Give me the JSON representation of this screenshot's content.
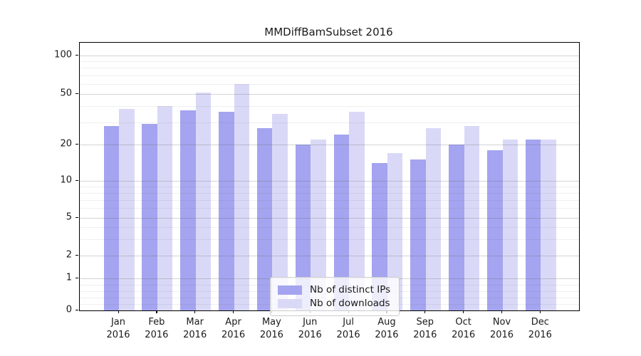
{
  "title": "MMDiffBamSubset 2016",
  "chart_data": {
    "type": "bar",
    "title": "MMDiffBamSubset 2016",
    "categories": [
      "Jan 2016",
      "Feb 2016",
      "Mar 2016",
      "Apr 2016",
      "May 2016",
      "Jun 2016",
      "Jul 2016",
      "Aug 2016",
      "Sep 2016",
      "Oct 2016",
      "Nov 2016",
      "Dec 2016"
    ],
    "series": [
      {
        "name": "Nb of distinct IPs",
        "color": "#a4a4f0",
        "values": [
          28,
          29,
          37,
          36,
          27,
          20,
          24,
          14,
          15,
          20,
          18,
          22
        ]
      },
      {
        "name": "Nb of downloads",
        "color": "#d9d9f7",
        "values": [
          38,
          40,
          51,
          60,
          35,
          22,
          36,
          17,
          27,
          28,
          22,
          22
        ]
      }
    ],
    "xlabel": "",
    "ylabel": "",
    "yscale": "symlog",
    "ylim": [
      0,
      100
    ],
    "yticks": [
      0,
      1,
      2,
      5,
      10,
      20,
      50,
      100
    ],
    "minor_yticks": [
      0.2,
      0.4,
      0.6,
      0.8,
      3,
      4,
      6,
      7,
      8,
      9,
      30,
      40,
      60,
      70,
      80,
      90
    ],
    "grid": true,
    "legend_position": "lower center"
  },
  "colors": {
    "bar_distinct_ips": "#a4a4f0",
    "bar_downloads": "#d9d9f7",
    "grid_major": "rgba(102,102,102,0.28)",
    "grid_minor": "rgba(102,102,102,0.10)",
    "axis": "#000000",
    "text": "#1a1a1a",
    "legend_border": "#cccccc",
    "legend_background": "rgba(255,255,255,0.8)"
  }
}
